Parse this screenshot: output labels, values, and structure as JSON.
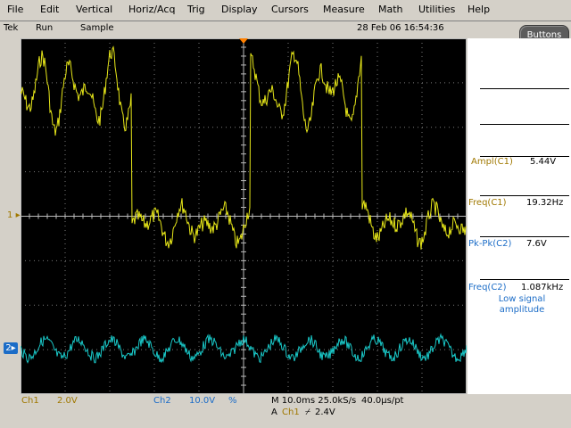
{
  "menu": [
    "File",
    "Edit",
    "Vertical",
    "Horiz/Acq",
    "Trig",
    "Display",
    "Cursors",
    "Measure",
    "Math",
    "Utilities",
    "Help"
  ],
  "status": {
    "brand": "Tek",
    "state": "Run",
    "mode": "Sample",
    "datetime": "28 Feb 06 16:54:36"
  },
  "buttons_label": "Buttons",
  "measurements": [
    {
      "label": "Ampl(C1)",
      "value": "5.44V",
      "channel": "ch1"
    },
    {
      "label": "Freq(C1)",
      "value": "19.32Hz",
      "channel": "ch1"
    },
    {
      "label": "Pk-Pk(C2)",
      "value": "7.6V",
      "channel": "ch2"
    },
    {
      "label": "Freq(C2)",
      "value": "1.087kHz",
      "channel": "ch2"
    }
  ],
  "meas_note": "Low signal amplitude",
  "markers": {
    "ch1": "1",
    "ch2": "2"
  },
  "readouts": {
    "ch1_name": "Ch1",
    "ch1_scale": "2.0V",
    "ch2_name": "Ch2",
    "ch2_scale": "10.0V",
    "ch2_bw": "%",
    "horiz": "M 10.0ms 25.0kS/s",
    "per_pt": "40.0µs/pt",
    "trig_prefix": "A",
    "trig_ch": "Ch1",
    "trig_slope": "⌿",
    "trig_level": "2.4V"
  },
  "colors": {
    "ch1": "#e6e619",
    "ch2": "#19c8c8",
    "grid": "#7a7a7a",
    "ch1_label": "#a07800",
    "ch2_label": "#1b6cc7",
    "trigger_marker": "#ff8000"
  }
}
